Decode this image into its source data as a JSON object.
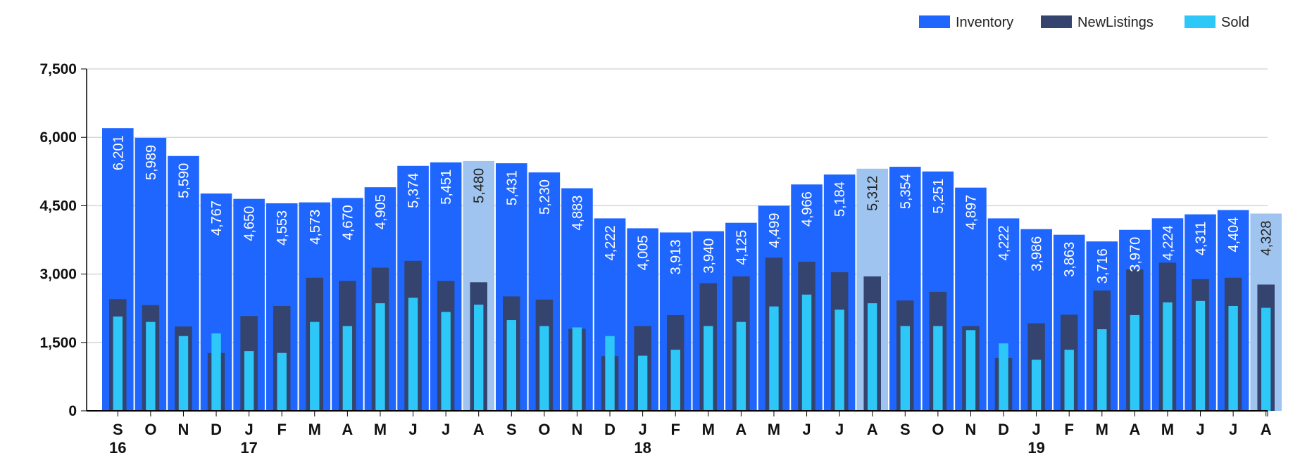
{
  "chart_data": {
    "type": "bar",
    "title": "",
    "xlabel": "",
    "ylabel": "",
    "ylim": [
      0,
      7500
    ],
    "yticks": [
      "0",
      "1,500",
      "3,000",
      "4,500",
      "6,000",
      "7,500"
    ],
    "ytick_values": [
      0,
      1500,
      3000,
      4500,
      6000,
      7500
    ],
    "grid": true,
    "legend_position": "top-right",
    "categories": [
      "S",
      "O",
      "N",
      "D",
      "J",
      "F",
      "M",
      "A",
      "M",
      "J",
      "J",
      "A",
      "S",
      "O",
      "N",
      "D",
      "J",
      "F",
      "M",
      "A",
      "M",
      "J",
      "J",
      "A",
      "S",
      "O",
      "N",
      "D",
      "J",
      "F",
      "M",
      "A",
      "M",
      "J",
      "J",
      "A"
    ],
    "year_labels": {
      "0": "16",
      "4": "17",
      "16": "18",
      "28": "19"
    },
    "highlighted": [
      11,
      23,
      35
    ],
    "series": [
      {
        "name": "Inventory",
        "color": "#1f66ff",
        "highlight_color": "#a0c4f0",
        "values": [
          6201,
          5989,
          5590,
          4767,
          4650,
          4553,
          4573,
          4670,
          4905,
          5374,
          5451,
          5480,
          5431,
          5230,
          4883,
          4222,
          4005,
          3913,
          3940,
          4125,
          4499,
          4966,
          5184,
          5312,
          5354,
          5251,
          4897,
          4222,
          3986,
          3863,
          3716,
          3970,
          4224,
          4311,
          4404,
          4328
        ],
        "labels": [
          "6,201",
          "5,989",
          "5,590",
          "4,767",
          "4,650",
          "4,553",
          "4,573",
          "4,670",
          "4,905",
          "5,374",
          "5,451",
          "5,480",
          "5,431",
          "5,230",
          "4,883",
          "4,222",
          "4,005",
          "3,913",
          "3,940",
          "4,125",
          "4,499",
          "4,966",
          "5,184",
          "5,312",
          "5,354",
          "5,251",
          "4,897",
          "4,222",
          "3,986",
          "3,863",
          "3,716",
          "3,970",
          "4,224",
          "4,311",
          "4,404",
          "4,328"
        ]
      },
      {
        "name": "NewListings",
        "color": "#34446e",
        "values": [
          2450,
          2320,
          1850,
          1270,
          2080,
          2300,
          2920,
          2850,
          3140,
          3290,
          2850,
          2820,
          2510,
          2440,
          1800,
          1200,
          1860,
          2100,
          2800,
          2950,
          3360,
          3270,
          3040,
          2950,
          2420,
          2610,
          1860,
          1160,
          1920,
          2110,
          2640,
          3100,
          3250,
          2890,
          2920,
          2770
        ]
      },
      {
        "name": "Sold",
        "color": "#2ec8f8",
        "values": [
          2070,
          1950,
          1640,
          1700,
          1310,
          1270,
          1950,
          1860,
          2360,
          2480,
          2170,
          2330,
          1990,
          1860,
          1830,
          1640,
          1210,
          1340,
          1860,
          1950,
          2290,
          2550,
          2220,
          2360,
          1860,
          1860,
          1770,
          1480,
          1120,
          1340,
          1790,
          2100,
          2380,
          2410,
          2300,
          2260
        ]
      }
    ]
  }
}
